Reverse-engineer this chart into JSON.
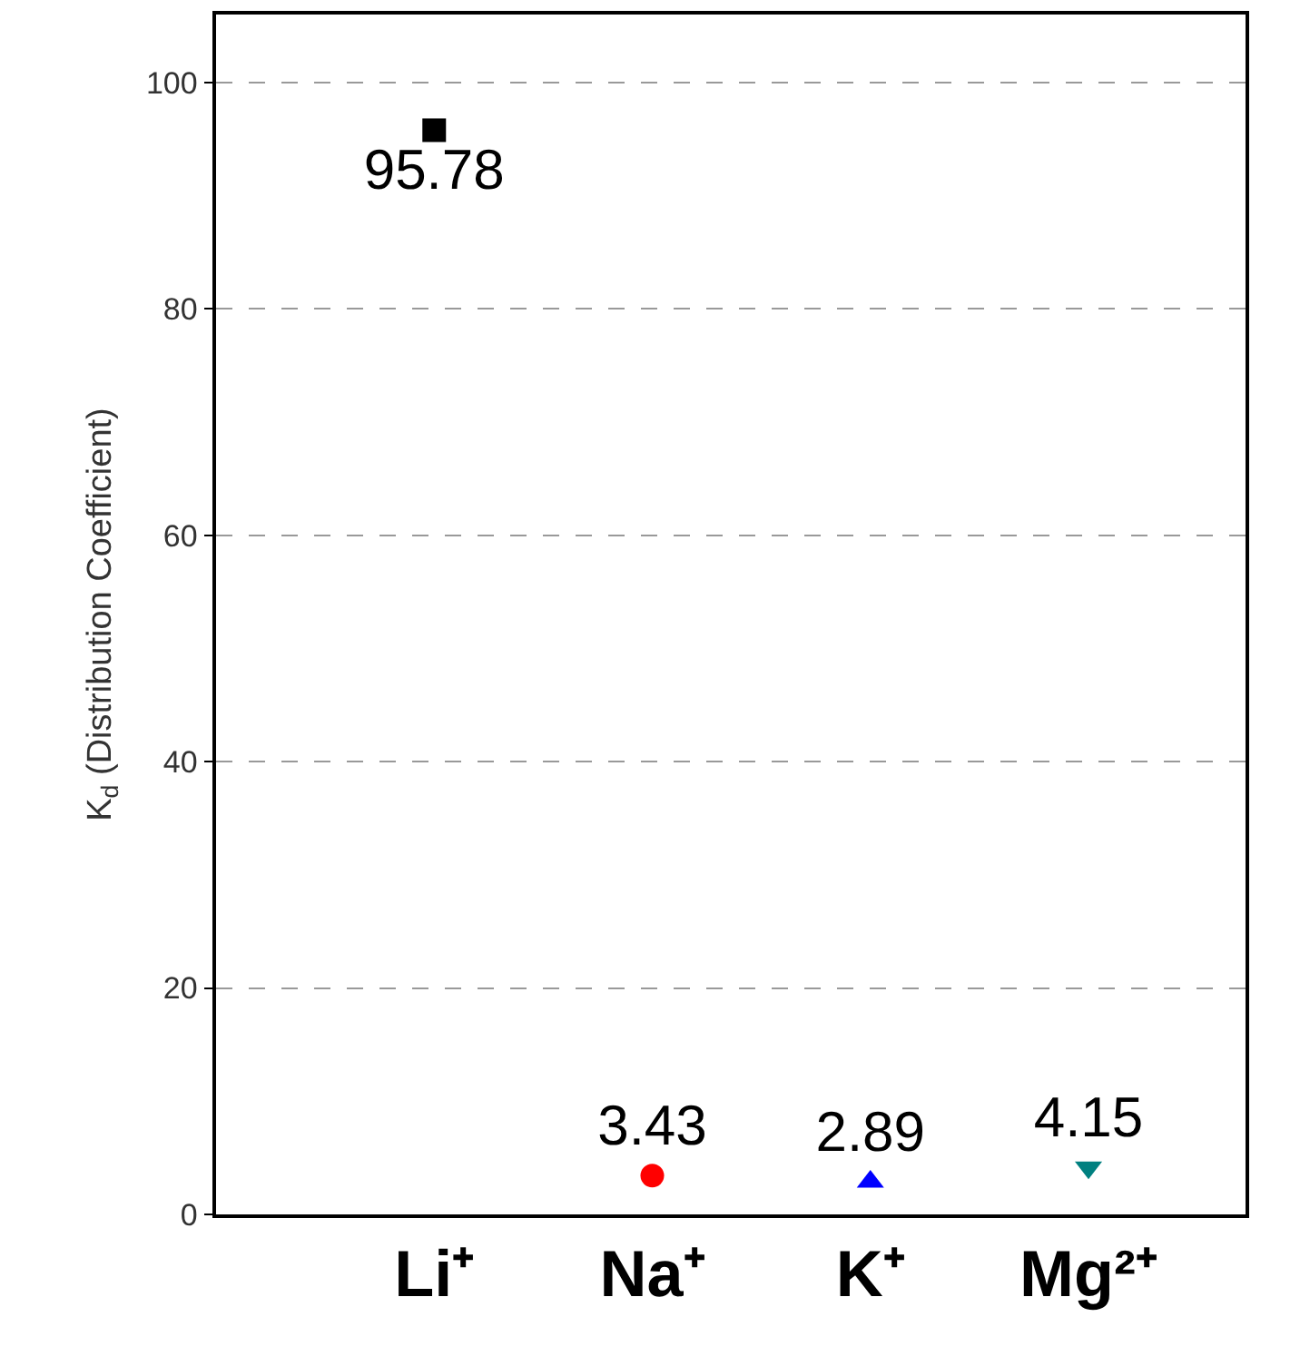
{
  "chart_data": {
    "type": "scatter",
    "ylabel": "K$_{d}$ (Distribution Coefficient)",
    "categories": [
      "Li⁺",
      "Na⁺",
      "K⁺",
      "Mg²⁺"
    ],
    "series": [
      {
        "color": "#000000",
        "marker": "square",
        "values": [
          95.78,
          null,
          null,
          null
        ]
      },
      {
        "color": "#ff0000",
        "marker": "circle",
        "values": [
          null,
          3.43,
          null,
          null
        ]
      },
      {
        "color": "#0000ff",
        "marker": "triangle",
        "values": [
          null,
          null,
          2.89,
          null
        ]
      },
      {
        "color": "#008080",
        "marker": "triangle-down",
        "values": [
          null,
          null,
          null,
          4.15
        ]
      }
    ],
    "data_labels": true,
    "ylim": [
      0,
      106
    ],
    "yticks": [
      0,
      20,
      40,
      60,
      80,
      100
    ],
    "grid": "y"
  }
}
